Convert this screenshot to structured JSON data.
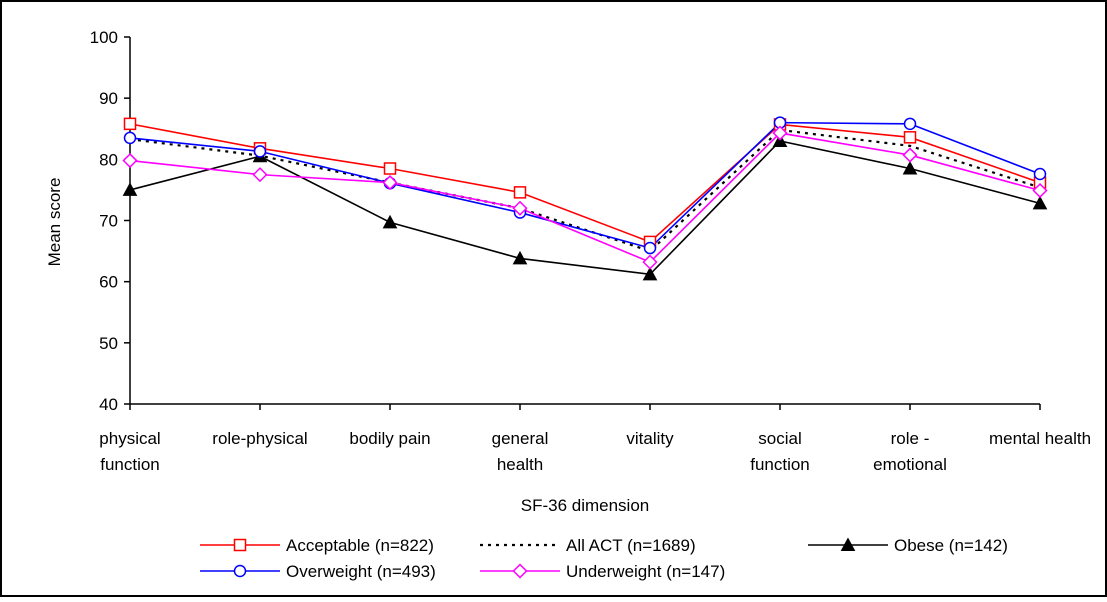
{
  "chart_data": {
    "type": "line",
    "xlabel": "SF-36 dimension",
    "ylabel": "Mean score",
    "ylim": [
      40,
      100
    ],
    "yticks": [
      "40",
      "50",
      "60",
      "70",
      "80",
      "90",
      "100"
    ],
    "categories": [
      [
        "physical",
        "function"
      ],
      [
        "role-physical"
      ],
      [
        "bodily pain"
      ],
      [
        "general",
        "health"
      ],
      [
        "vitality"
      ],
      [
        "social",
        "function"
      ],
      [
        "role -",
        "emotional"
      ],
      [
        "mental health"
      ]
    ],
    "series": [
      {
        "name": "Acceptable (n=822)",
        "color": "#ff0000",
        "dash": "",
        "marker": "square-open",
        "values": [
          85.8,
          81.8,
          78.5,
          74.6,
          66.5,
          85.7,
          83.6,
          76.2
        ]
      },
      {
        "name": "All ACT (n=1689)",
        "color": "#000000",
        "dash": "3,5",
        "marker": "none",
        "values": [
          83.3,
          80.6,
          76.2,
          72.0,
          65.0,
          84.8,
          82.2,
          75.4
        ]
      },
      {
        "name": "Obese (n=142)",
        "color": "#000000",
        "dash": "",
        "marker": "triangle-filled",
        "values": [
          75.0,
          80.5,
          69.7,
          63.8,
          61.2,
          83.0,
          78.5,
          72.8
        ]
      },
      {
        "name": "Overweight (n=493)",
        "color": "#0000ff",
        "dash": "",
        "marker": "circle-open",
        "values": [
          83.5,
          81.3,
          76.1,
          71.3,
          65.5,
          86.0,
          85.8,
          77.6
        ]
      },
      {
        "name": "Underweight (n=147)",
        "color": "#ff00ff",
        "dash": "",
        "marker": "diamond-open",
        "values": [
          79.8,
          77.5,
          76.2,
          72.0,
          63.2,
          84.3,
          80.7,
          74.9
        ]
      }
    ],
    "legend_position": "bottom",
    "grid": false
  }
}
